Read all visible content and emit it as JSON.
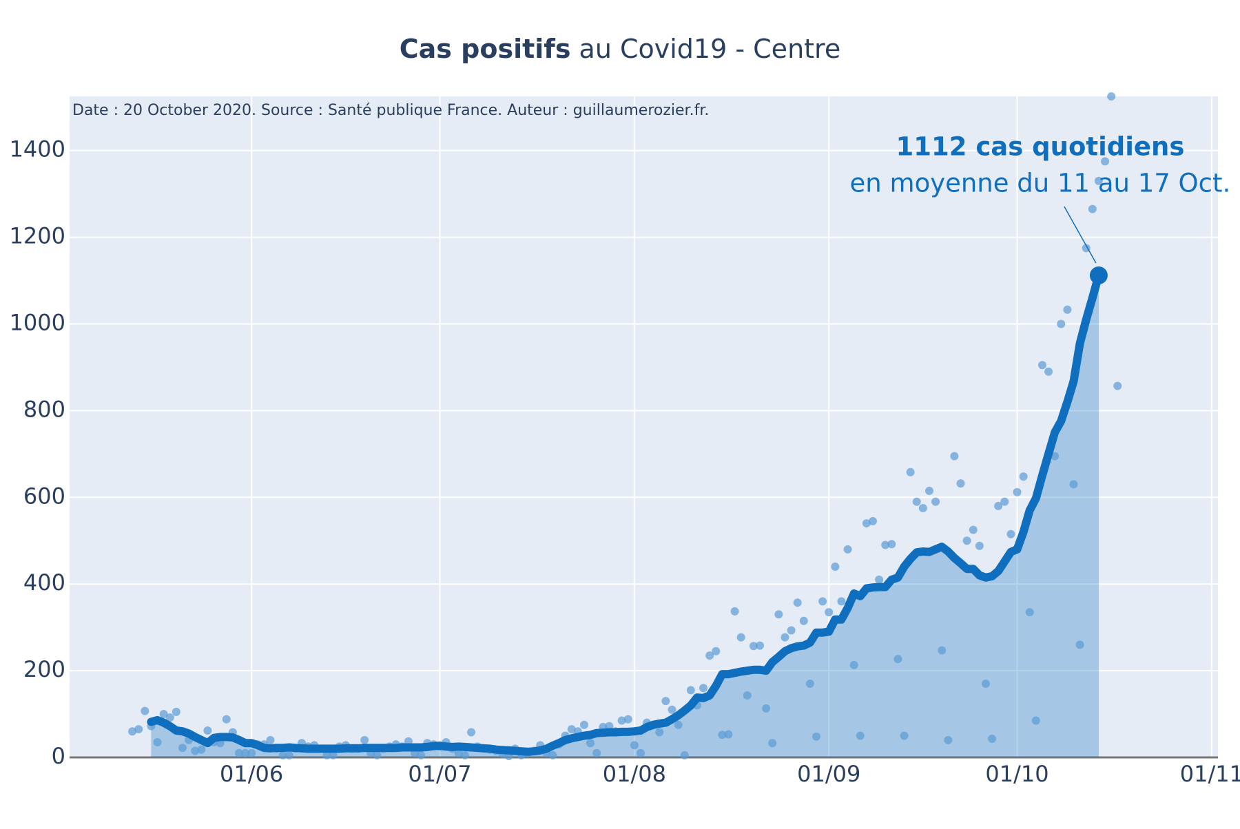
{
  "chart_data": {
    "type": "line",
    "title_bold": "Cas positifs",
    "title": "au Covid19 - Centre",
    "note": "Date : 20 October 2020. Source : Santé publique France. Auteur : guillaumerozier.fr.",
    "annotation": {
      "text_bold": "1112 cas quotidiens",
      "text": "en moyenne du 11 au 17 Oct."
    },
    "x": [
      "13/05",
      "14/05",
      "15/05",
      "16/05",
      "17/05",
      "18/05",
      "19/05",
      "20/05",
      "21/05",
      "22/05",
      "23/05",
      "24/05",
      "25/05",
      "26/05",
      "27/05",
      "28/05",
      "29/05",
      "30/05",
      "31/05",
      "01/06",
      "02/06",
      "03/06",
      "04/06",
      "05/06",
      "06/06",
      "07/06",
      "08/06",
      "09/06",
      "10/06",
      "11/06",
      "12/06",
      "13/06",
      "14/06",
      "15/06",
      "16/06",
      "17/06",
      "18/06",
      "19/06",
      "20/06",
      "21/06",
      "22/06",
      "23/06",
      "24/06",
      "25/06",
      "26/06",
      "27/06",
      "28/06",
      "29/06",
      "30/06",
      "01/07",
      "02/07",
      "03/07",
      "04/07",
      "05/07",
      "06/07",
      "07/07",
      "08/07",
      "09/07",
      "10/07",
      "11/07",
      "12/07",
      "13/07",
      "14/07",
      "15/07",
      "16/07",
      "17/07",
      "18/07",
      "19/07",
      "20/07",
      "21/07",
      "22/07",
      "23/07",
      "24/07",
      "25/07",
      "26/07",
      "27/07",
      "28/07",
      "29/07",
      "30/07",
      "31/07",
      "01/08",
      "02/08",
      "03/08",
      "04/08",
      "05/08",
      "06/08",
      "07/08",
      "08/08",
      "09/08",
      "10/08",
      "11/08",
      "12/08",
      "13/08",
      "14/08",
      "15/08",
      "16/08",
      "17/08",
      "18/08",
      "19/08",
      "20/08",
      "21/08",
      "22/08",
      "23/08",
      "24/08",
      "25/08",
      "26/08",
      "27/08",
      "28/08",
      "29/08",
      "30/08",
      "31/08",
      "01/09",
      "02/09",
      "03/09",
      "04/09",
      "05/09",
      "06/09",
      "07/09",
      "08/09",
      "09/09",
      "10/09",
      "11/09",
      "12/09",
      "13/09",
      "14/09",
      "15/09",
      "16/09",
      "17/09",
      "18/09",
      "19/09",
      "20/09",
      "21/09",
      "22/09",
      "23/09",
      "24/09",
      "25/09",
      "26/09",
      "27/09",
      "28/09",
      "29/09",
      "30/09",
      "01/10",
      "02/10",
      "03/10",
      "04/10",
      "05/10",
      "06/10",
      "07/10",
      "08/10",
      "09/10",
      "10/10",
      "11/10",
      "12/10",
      "13/10",
      "14/10",
      "15/10",
      "16/10",
      "17/10"
    ],
    "series": [
      {
        "type": "scatter",
        "color": "#5b9bd5",
        "values": [
          60,
          65,
          107,
          72,
          35,
          100,
          92,
          105,
          22,
          40,
          15,
          18,
          62,
          35,
          33,
          88,
          58,
          10,
          10,
          10,
          30,
          30,
          40,
          20,
          5,
          5,
          20,
          33,
          25,
          28,
          20,
          5,
          5,
          25,
          28,
          20,
          20,
          40,
          10,
          5,
          20,
          25,
          30,
          25,
          37,
          10,
          5,
          33,
          30,
          25,
          35,
          20,
          10,
          5,
          58,
          25,
          20,
          18,
          15,
          8,
          3,
          20,
          5,
          10,
          15,
          28,
          10,
          5,
          30,
          50,
          65,
          60,
          75,
          33,
          10,
          70,
          72,
          60,
          85,
          88,
          28,
          10,
          80,
          75,
          58,
          130,
          110,
          75,
          5,
          155,
          120,
          160,
          235,
          245,
          52,
          53,
          337,
          277,
          143,
          257,
          258,
          113,
          33,
          330,
          277,
          293,
          357,
          315,
          170,
          48,
          360,
          335,
          440,
          360,
          480,
          213,
          50,
          540,
          545,
          410,
          490,
          492,
          227,
          50,
          658,
          590,
          575,
          615,
          590,
          247,
          40,
          695,
          632,
          500,
          525,
          488,
          170,
          43,
          580,
          590,
          515,
          612,
          648,
          335,
          85,
          905,
          890,
          695,
          1000,
          1033,
          630,
          260,
          1175,
          1265,
          1330,
          1375,
          1525,
          857
        ]
      },
      {
        "type": "line",
        "color": "#0f6fbe",
        "fill": true,
        "values": [
          null,
          null,
          null,
          82,
          86,
          80,
          72,
          62,
          60,
          55,
          47,
          40,
          33,
          45,
          47,
          47,
          46,
          40,
          33,
          33,
          28,
          22,
          21,
          22,
          22,
          23,
          22,
          21,
          20,
          20,
          20,
          20,
          20,
          20,
          21,
          21,
          21,
          22,
          22,
          22,
          22,
          22,
          22,
          23,
          23,
          23,
          23,
          24,
          26,
          27,
          25,
          24,
          25,
          24,
          23,
          22,
          21,
          20,
          18,
          17,
          16,
          15,
          14,
          13,
          14,
          16,
          20,
          27,
          33,
          40,
          44,
          47,
          50,
          52,
          56,
          57,
          58,
          58,
          59,
          59,
          60,
          62,
          70,
          75,
          78,
          80,
          88,
          97,
          108,
          120,
          138,
          137,
          143,
          165,
          192,
          192,
          195,
          198,
          200,
          202,
          202,
          200,
          220,
          232,
          245,
          252,
          256,
          258,
          265,
          288,
          288,
          290,
          318,
          318,
          345,
          378,
          372,
          390,
          392,
          393,
          393,
          410,
          415,
          440,
          458,
          473,
          475,
          474,
          480,
          486,
          475,
          460,
          448,
          435,
          435,
          420,
          415,
          418,
          430,
          452,
          474,
          480,
          520,
          570,
          598,
          650,
          700,
          750,
          776,
          820,
          868,
          955,
          1010,
          1060,
          1112,
          null,
          null,
          null
        ]
      }
    ],
    "xlim": [
      "03/05",
      "02/11"
    ],
    "xticks": [
      "01/06",
      "01/07",
      "01/08",
      "01/09",
      "01/10",
      "01/11"
    ],
    "ylim": [
      0,
      1525
    ],
    "yticks": [
      0,
      200,
      400,
      600,
      800,
      1000,
      1200,
      1400
    ],
    "grid": true,
    "plot_background": "#e5ecf6"
  }
}
